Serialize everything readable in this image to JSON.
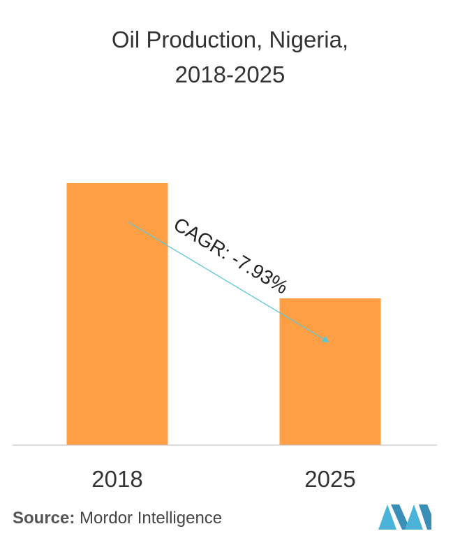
{
  "title_lines": [
    "Oil Production, Nigeria,",
    "2018-2025"
  ],
  "source": {
    "label": "Source:",
    "text": "Mordor Intelligence"
  },
  "colors": {
    "bar": "#FF9F45",
    "arrow": "#5CC6D6",
    "axis": "#bbbbbb",
    "logo": "#4BB3D8"
  },
  "logo_icon": "mordor-intelligence-logo-icon",
  "chart_data": {
    "type": "bar",
    "categories": [
      "2018",
      "2025"
    ],
    "values": [
      100,
      56
    ],
    "annotation": "CAGR: -7.93%",
    "title": "Oil Production, Nigeria, 2018-2025",
    "xlabel": "",
    "ylabel": "",
    "ylim": [
      0,
      100
    ],
    "grid": false
  }
}
